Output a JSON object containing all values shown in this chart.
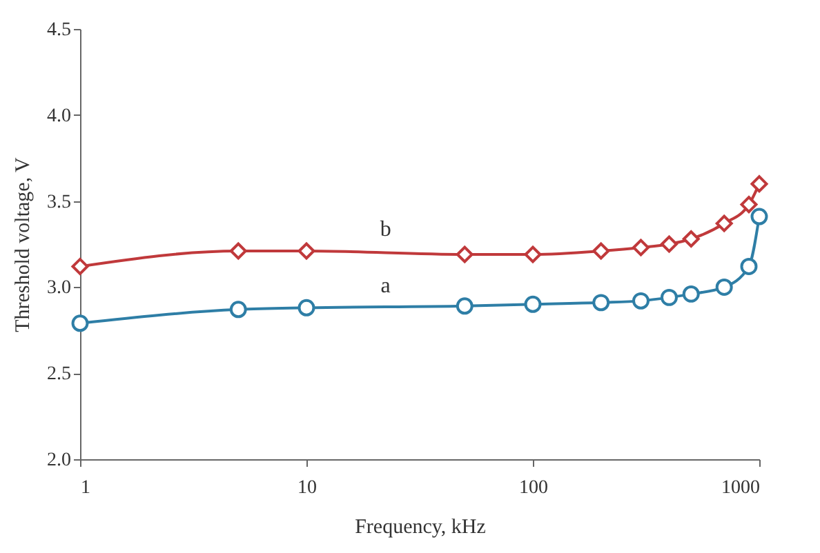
{
  "chart_data": {
    "type": "line",
    "xlabel": "Frequency, kHz",
    "ylabel": "Threshold voltage, V",
    "x": [
      1,
      5,
      10,
      50,
      100,
      200,
      300,
      400,
      500,
      700,
      900,
      1000
    ],
    "series": [
      {
        "name": "a",
        "color": "#2e7ea6",
        "marker": "circle",
        "values": [
          2.79,
          2.87,
          2.88,
          2.89,
          2.9,
          2.91,
          2.92,
          2.94,
          2.96,
          3.0,
          3.12,
          3.41
        ]
      },
      {
        "name": "b",
        "color": "#c0393b",
        "marker": "diamond",
        "values": [
          3.12,
          3.21,
          3.21,
          3.19,
          3.19,
          3.21,
          3.23,
          3.25,
          3.28,
          3.37,
          3.48,
          3.6
        ]
      }
    ],
    "log": "x",
    "xlim": [
      1,
      1000
    ],
    "xticks": [
      1,
      10,
      100,
      1000
    ],
    "ylim": [
      2.0,
      4.5
    ],
    "yticks": [
      {
        "value": 2,
        "label": "2.0"
      },
      2.5,
      {
        "value": 3,
        "label": "3.0"
      },
      3.5,
      {
        "value": 4,
        "label": "4.0"
      },
      4.5
    ],
    "grid": false,
    "legend": false,
    "line_style": "solid"
  }
}
